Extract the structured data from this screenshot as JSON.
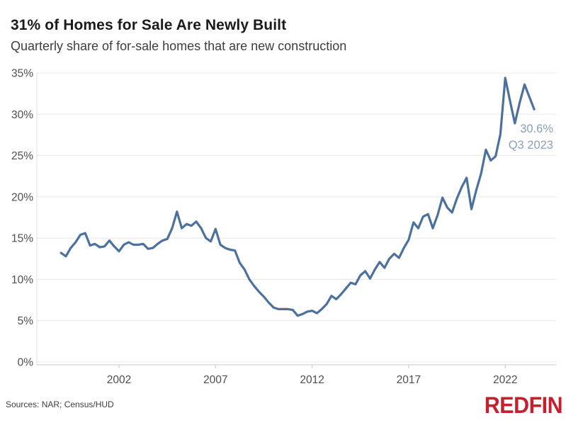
{
  "header": {
    "title": "31% of Homes for Sale Are Newly Built",
    "subtitle": "Quarterly share of for-sale homes that are new construction"
  },
  "annotation": {
    "value_label": "30.6%",
    "period_label": "Q3 2023"
  },
  "footer": {
    "sources": "Sources: NAR; Census/HUD",
    "brand": "REDFIN"
  },
  "colors": {
    "line": "#4c719c",
    "annotation_text": "#8da0b5",
    "grid": "#e8e8e8",
    "axis_line": "#c8c8c8",
    "left_border": "#e0e0e0",
    "tick_text": "#4e4e4e",
    "title_text": "#1b1b1b",
    "subtitle_text": "#3d3d3d",
    "brand_red": "#c4202e"
  },
  "chart_data": {
    "type": "line",
    "title": "31% of Homes for Sale Are Newly Built",
    "subtitle": "Quarterly share of for-sale homes that are new construction",
    "frequency": "quarterly",
    "start_period": "Q1 1999",
    "end_period": "Q3 2023",
    "unit": "%",
    "ylim": [
      0,
      35
    ],
    "grid": "horizontal",
    "y_ticks": [
      0,
      5,
      10,
      15,
      20,
      25,
      30,
      35
    ],
    "y_tick_labels": [
      "0%",
      "5%",
      "10%",
      "15%",
      "20%",
      "25%",
      "30%",
      "35%"
    ],
    "x_tick_years": [
      2002,
      2007,
      2012,
      2017,
      2022
    ],
    "x_tick_labels": [
      "2002",
      "2007",
      "2012",
      "2017",
      "2022"
    ],
    "last_point": {
      "period": "Q3 2023",
      "value": 30.6
    },
    "peak_point": {
      "period": "Q1 2022",
      "value": 34.4
    },
    "values": [
      13.2,
      12.8,
      13.8,
      14.5,
      15.4,
      15.6,
      14.1,
      14.3,
      13.9,
      14.0,
      14.7,
      14.0,
      13.4,
      14.2,
      14.5,
      14.2,
      14.2,
      14.3,
      13.7,
      13.8,
      14.3,
      14.7,
      14.9,
      16.2,
      18.2,
      16.2,
      16.7,
      16.5,
      17.0,
      16.2,
      15.0,
      14.6,
      16.1,
      14.2,
      13.8,
      13.6,
      13.5,
      12.0,
      11.2,
      10.0,
      9.2,
      8.5,
      7.9,
      7.2,
      6.6,
      6.4,
      6.4,
      6.4,
      6.3,
      5.6,
      5.8,
      6.1,
      6.2,
      5.9,
      6.4,
      7.0,
      8.0,
      7.6,
      8.2,
      8.9,
      9.6,
      9.4,
      10.5,
      11.0,
      10.1,
      11.2,
      12.1,
      11.4,
      12.5,
      13.1,
      12.6,
      13.8,
      14.8,
      16.9,
      16.2,
      17.6,
      17.9,
      16.2,
      17.8,
      19.9,
      18.7,
      18.1,
      19.8,
      21.2,
      22.3,
      18.5,
      20.8,
      22.8,
      25.7,
      24.4,
      24.9,
      27.6,
      34.4,
      31.6,
      28.9,
      31.4,
      33.6,
      32.1,
      30.6
    ]
  }
}
